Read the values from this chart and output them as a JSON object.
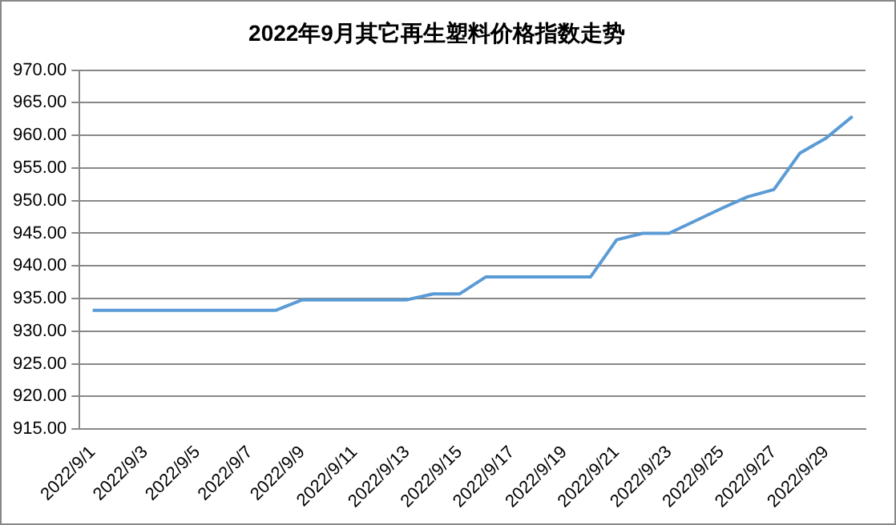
{
  "chart_data": {
    "type": "line",
    "title": "2022年9月其它再生塑料价格指数走势",
    "categories": [
      "2022/9/1",
      null,
      "2022/9/3",
      null,
      "2022/9/5",
      null,
      "2022/9/7",
      null,
      "2022/9/9",
      null,
      "2022/9/11",
      null,
      "2022/9/13",
      null,
      "2022/9/15",
      null,
      "2022/9/17",
      null,
      "2022/9/19",
      null,
      "2022/9/21",
      null,
      "2022/9/23",
      null,
      "2022/9/25",
      null,
      "2022/9/27",
      null,
      "2022/9/29",
      null
    ],
    "series": [
      {
        "color": "#5b9bd5",
        "values": [
          933.2,
          933.2,
          933.2,
          933.2,
          933.2,
          933.2,
          933.2,
          933.2,
          934.8,
          934.8,
          934.8,
          934.8,
          934.8,
          935.7,
          935.7,
          938.3,
          938.3,
          938.3,
          938.3,
          938.3,
          944.0,
          945.0,
          945.0,
          946.9,
          948.8,
          950.6,
          951.7,
          957.3,
          959.6,
          962.9
        ]
      }
    ],
    "ylim": [
      915,
      970
    ],
    "yticks": [
      {
        "value": 915,
        "label": "915.00"
      },
      {
        "value": 920,
        "label": "920.00"
      },
      {
        "value": 925,
        "label": "925.00"
      },
      {
        "value": 930,
        "label": "930.00"
      },
      {
        "value": 935,
        "label": "935.00"
      },
      {
        "value": 940,
        "label": "940.00"
      },
      {
        "value": 945,
        "label": "945.00"
      },
      {
        "value": 950,
        "label": "950.00"
      },
      {
        "value": 955,
        "label": "955.00"
      },
      {
        "value": 960,
        "label": "960.00"
      },
      {
        "value": 965,
        "label": "965.00"
      },
      {
        "value": 970,
        "label": "970.00"
      }
    ],
    "grid": "y",
    "legend": false,
    "marker": "none",
    "line_style": "solid"
  }
}
